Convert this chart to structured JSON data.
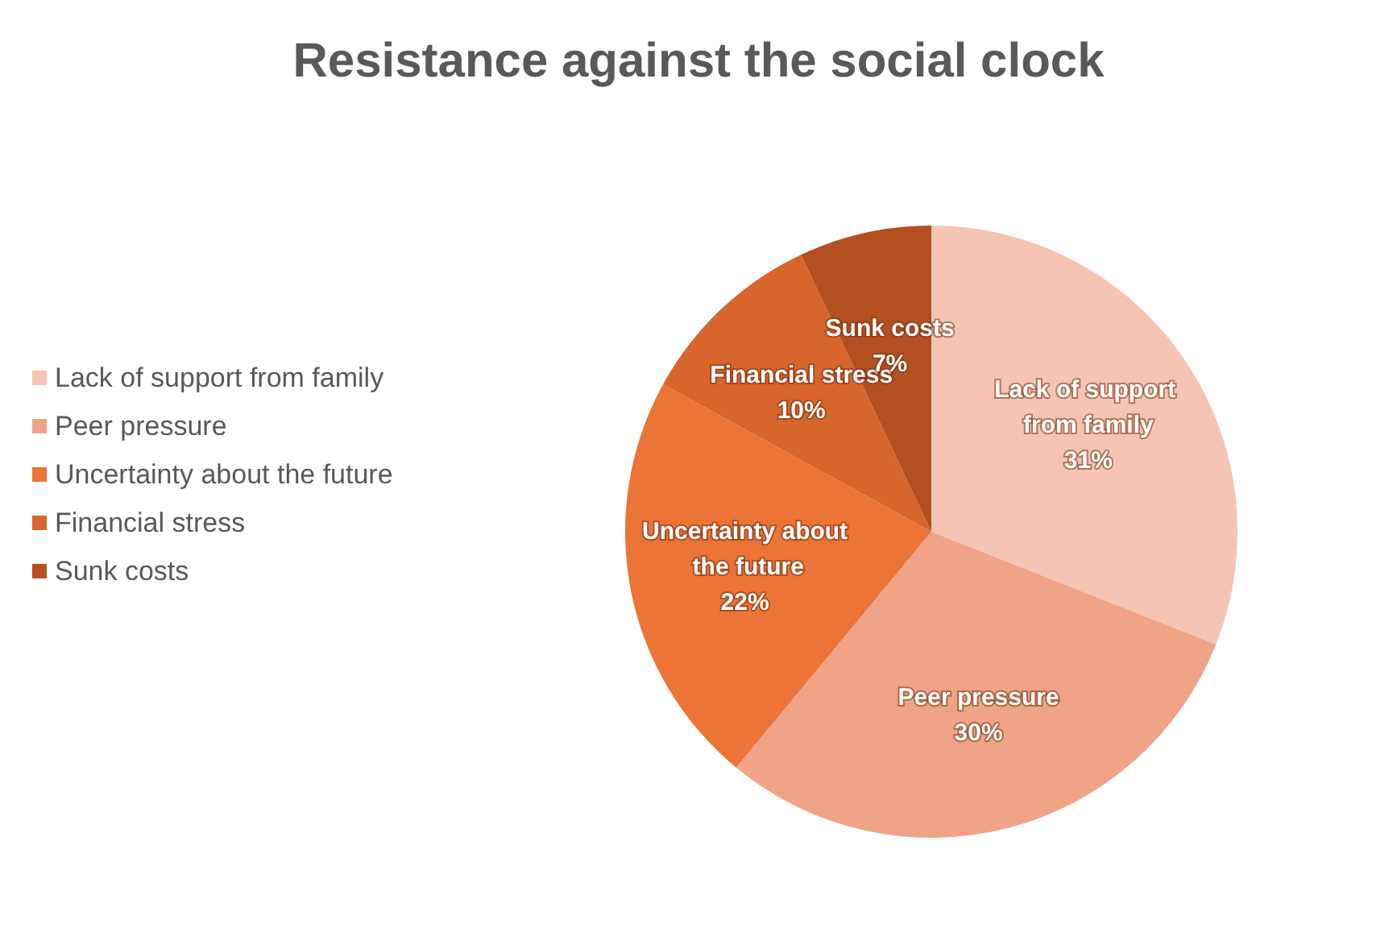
{
  "chart_data": {
    "type": "pie",
    "title": "Resistance against the social clock",
    "categories": [
      "Lack of support from family",
      "Peer pressure",
      "Uncertainty about the future",
      "Financial stress",
      "Sunk costs"
    ],
    "values": [
      31,
      30,
      22,
      10,
      7
    ],
    "colors": [
      "#f5c4b4",
      "#efa488",
      "#eb7436",
      "#d7652c",
      "#b4501f"
    ],
    "value_labels": [
      "31%",
      "30%",
      "22%",
      "10%",
      "7%"
    ],
    "legend": "left"
  }
}
